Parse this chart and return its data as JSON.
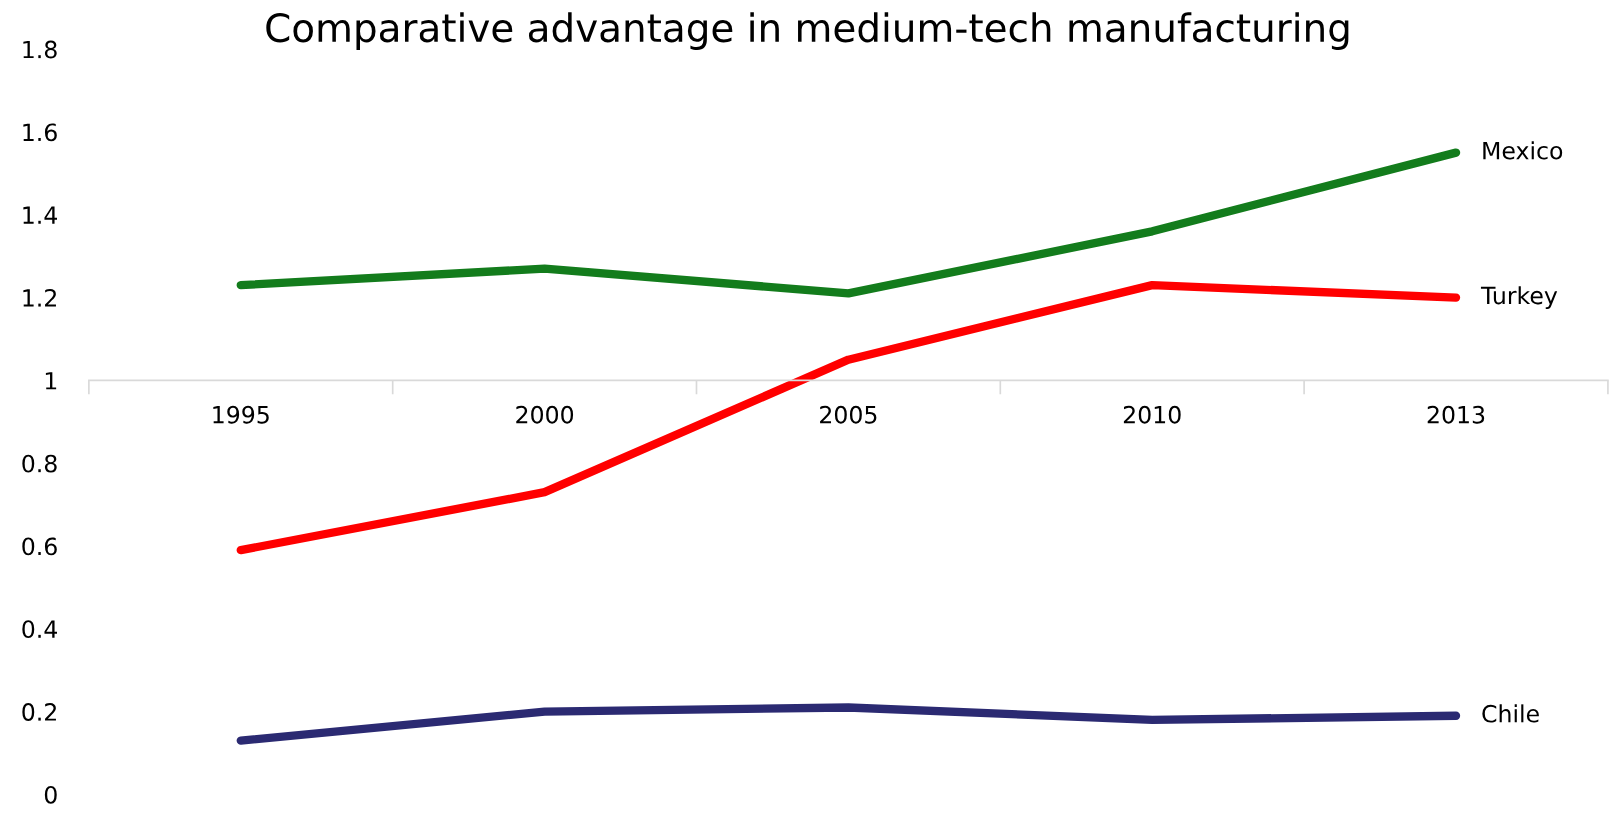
{
  "chart_data": {
    "type": "line",
    "title": "Comparative advantage in medium-tech manufacturing",
    "categories": [
      "1995",
      "2000",
      "2005",
      "2010",
      "2013"
    ],
    "series": [
      {
        "name": "Mexico",
        "color": "#137c1c",
        "values": [
          1.23,
          1.27,
          1.21,
          1.36,
          1.55
        ]
      },
      {
        "name": "Turkey",
        "color": "#ff0000",
        "values": [
          0.59,
          0.73,
          1.05,
          1.23,
          1.2
        ]
      },
      {
        "name": "Chile",
        "color": "#2b2a72",
        "values": [
          0.13,
          0.2,
          0.21,
          0.18,
          0.19
        ]
      }
    ],
    "ylim": [
      0,
      1.8
    ],
    "yticks": [
      0,
      0.2,
      0.4,
      0.6,
      0.8,
      1,
      1.2,
      1.4,
      1.6,
      1.8
    ],
    "grid": false,
    "legend": false,
    "marker": "none",
    "line_style": "solid"
  }
}
